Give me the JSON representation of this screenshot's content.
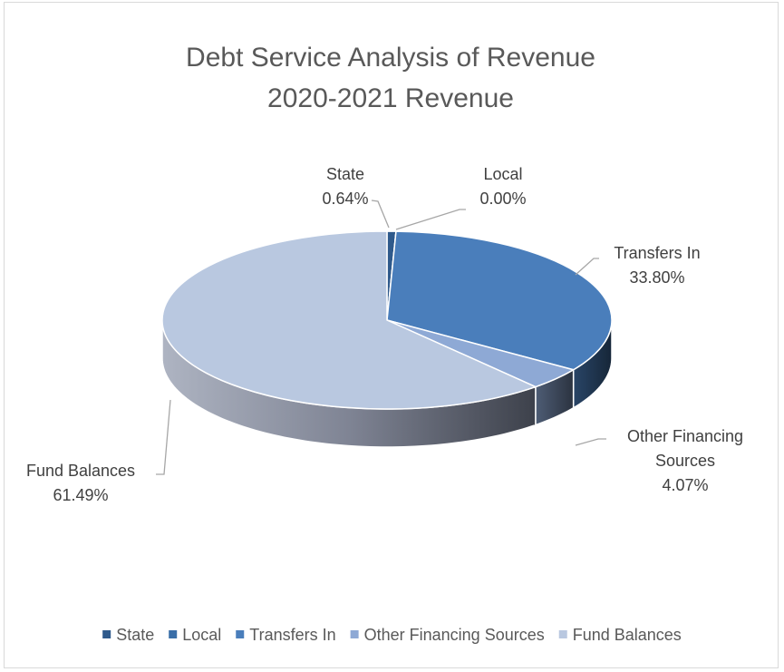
{
  "chart_data": {
    "type": "pie",
    "variant": "3d",
    "title": [
      "Debt Service Analysis of Revenue",
      "2020-2021 Revenue"
    ],
    "slices": [
      {
        "name": "State",
        "value": 0.64,
        "label": "0.64%",
        "color": "#2f5a8c"
      },
      {
        "name": "Local",
        "value": 0.0,
        "label": "0.00%",
        "color": "#3a6ea8"
      },
      {
        "name": "Transfers In",
        "value": 33.8,
        "label": "33.80%",
        "color": "#4a7ebb"
      },
      {
        "name": "Other Financing Sources",
        "value": 4.07,
        "label": "4.07%",
        "color": "#8ea9d5"
      },
      {
        "name": "Fund Balances",
        "value": 61.49,
        "label": "61.49%",
        "color": "#b9c8e0"
      }
    ],
    "legend": {
      "position": "bottom",
      "entries": [
        "State",
        "Local",
        "Transfers In",
        "Other Financing Sources",
        "Fund Balances"
      ]
    },
    "data_label_text": {
      "State": [
        "State",
        "0.64%"
      ],
      "Local": [
        "Local",
        "0.00%"
      ],
      "Transfers In": [
        "Transfers In",
        "33.80%"
      ],
      "Other Financing Sources": [
        "Other Financing",
        "Sources",
        "4.07%"
      ],
      "Fund Balances": [
        "Fund Balances",
        "61.49%"
      ]
    }
  }
}
